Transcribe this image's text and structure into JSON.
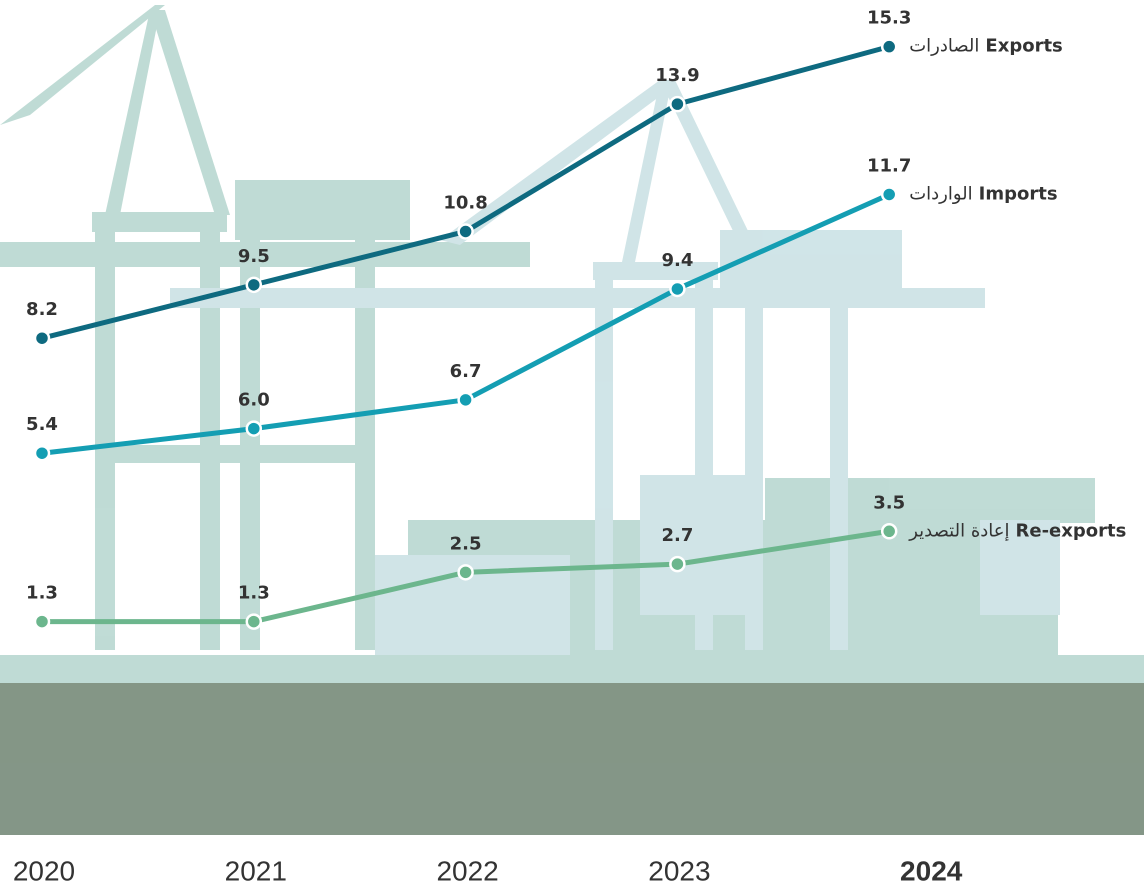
{
  "chart_data": {
    "type": "line",
    "categories": [
      "2020",
      "2021",
      "2022",
      "2023",
      "2024"
    ],
    "series": [
      {
        "name": "Exports",
        "name_ar": "الصادرات",
        "color": "#0e6a80",
        "values": [
          8.2,
          9.5,
          10.8,
          13.9,
          15.3
        ],
        "value_labels": [
          "8.2",
          "9.5",
          "10.8",
          "13.9",
          "15.3"
        ]
      },
      {
        "name": "Imports",
        "name_ar": "الواردات",
        "color": "#149eb3",
        "values": [
          5.4,
          6,
          6.7,
          9.4,
          11.7
        ],
        "value_labels": [
          "5.4",
          "6.0",
          "6.7",
          "9.4",
          "11.7"
        ]
      },
      {
        "name": "Re-exports",
        "name_ar": "إعادة التصدير",
        "color": "#6cb68d",
        "values": [
          1.3,
          1.3,
          2.5,
          2.7,
          3.5
        ],
        "value_labels": [
          "1.3",
          "1.3",
          "2.5",
          "2.7",
          "3.5"
        ]
      }
    ]
  }
}
